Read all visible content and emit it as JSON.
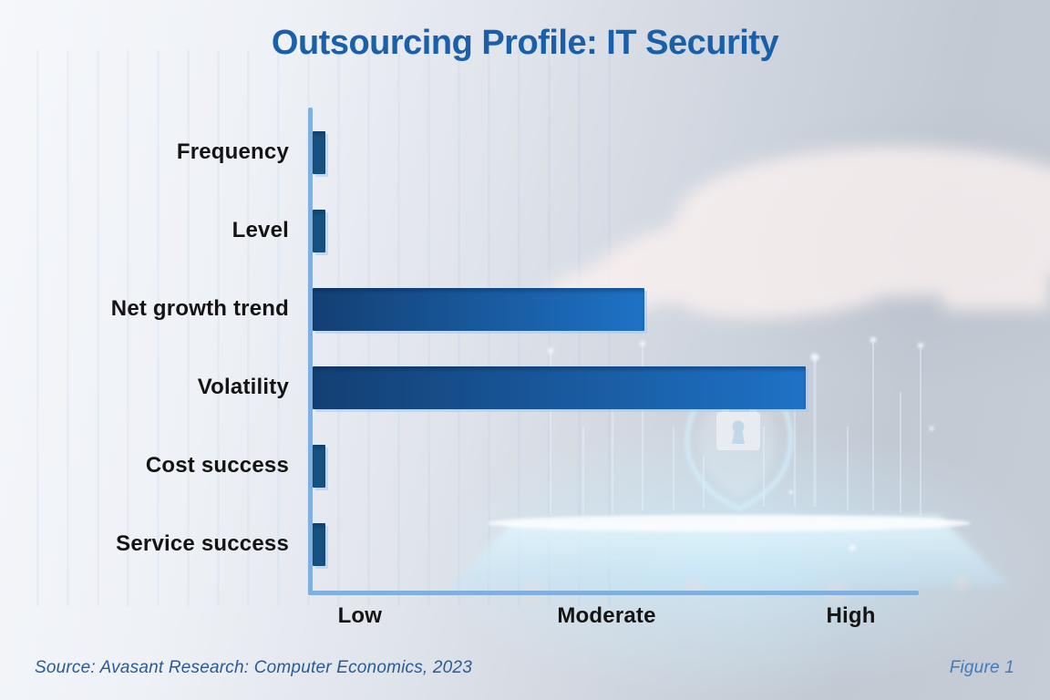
{
  "page_title": "Outsourcing Profile: IT Security",
  "chart_data": {
    "type": "bar",
    "orientation": "horizontal",
    "title": "Outsourcing Profile: IT Security",
    "categories": [
      "Frequency",
      "Level",
      "Net growth trend",
      "Volatility",
      "Cost success",
      "Service success"
    ],
    "values_pct_of_axis": [
      2.1,
      2.1,
      54.7,
      81.4,
      2.1,
      2.1
    ],
    "value_scale_note": "qualitative x-axis from Low to High; values read as percent of axis length",
    "x_ticks": [
      {
        "label": "Low",
        "pos_pct": 7.8
      },
      {
        "label": "Moderate",
        "pos_pct": 48.5
      },
      {
        "label": "High",
        "pos_pct": 88.8
      }
    ],
    "grid": false,
    "legend": "none"
  },
  "colors": {
    "title_text": "#1a5fa9",
    "category_label_text": "#141414",
    "tick_label_text": "#141414",
    "bar_gradient_start": "#133f73",
    "bar_gradient_end": "#1e72c6",
    "stub_bar": "#17517f",
    "axis_line": "#7fb0e0",
    "source_text": "#2a5b94",
    "figure_text": "#3f7cba"
  },
  "footer": {
    "source": "Source: Avasant Research: Computer Economics, 2023",
    "figure_label": "Figure 1"
  },
  "background": {
    "icons": [
      "hovering-hand-image",
      "security-shield-icon",
      "padlock-icon",
      "hologram-tablet-glow",
      "light-ray",
      "glow-dot"
    ]
  }
}
